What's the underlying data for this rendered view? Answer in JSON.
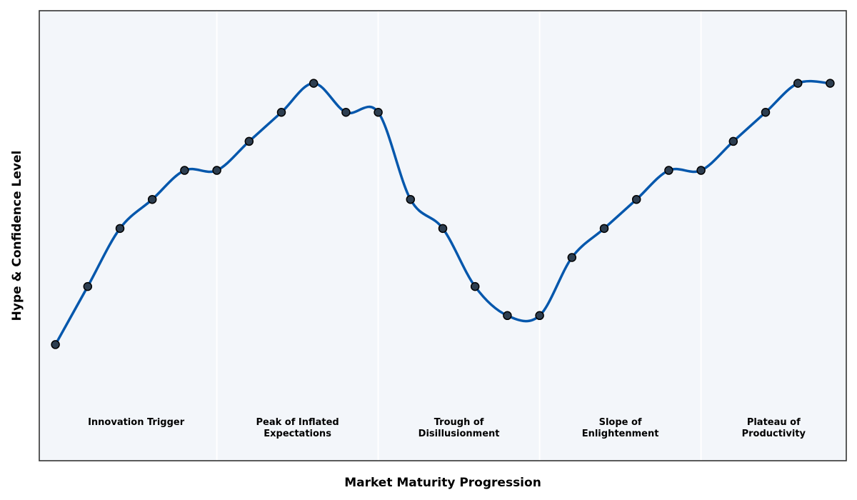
{
  "chart_data": {
    "type": "line",
    "xlabel": "Market Maturity Progression",
    "ylabel": "Hype & Confidence Level",
    "grid": false,
    "colors": {
      "line": "#0457ac",
      "marker_fill": "#2d3e50",
      "marker_edge": "#000000",
      "plot_background": "#f3f6fa",
      "frame": "#333333",
      "phase_divider": "#ffffff"
    },
    "phases": [
      {
        "name": "Innovation Trigger",
        "lines": [
          "Innovation Trigger"
        ],
        "start_index": 0,
        "end_index": 5
      },
      {
        "name": "Peak of Inflated Expectations",
        "lines": [
          "Peak of Inflated",
          "Expectations"
        ],
        "start_index": 5,
        "end_index": 10
      },
      {
        "name": "Trough of Disillusionment",
        "lines": [
          "Trough of",
          "Disillusionment"
        ],
        "start_index": 10,
        "end_index": 15
      },
      {
        "name": "Slope of Enlightenment",
        "lines": [
          "Slope of",
          "Enlightenment"
        ],
        "start_index": 15,
        "end_index": 20
      },
      {
        "name": "Plateau of Productivity",
        "lines": [
          "Plateau of",
          "Productivity"
        ],
        "start_index": 20,
        "end_index": 24.5
      }
    ],
    "x": [
      0,
      1,
      2,
      3,
      4,
      5,
      6,
      7,
      8,
      9,
      10,
      11,
      12,
      13,
      14,
      15,
      16,
      17,
      18,
      19,
      20,
      21,
      22,
      23,
      24
    ],
    "series": [
      {
        "values": [
          2,
          4,
          6,
          7,
          8,
          8,
          9,
          10,
          11,
          10,
          10,
          7,
          6,
          4,
          3,
          3,
          5,
          6,
          7,
          8,
          8,
          9,
          10,
          11,
          11
        ]
      }
    ],
    "xlim": [
      -0.5,
      24.5
    ],
    "ylim": [
      -2,
      13.5
    ]
  }
}
